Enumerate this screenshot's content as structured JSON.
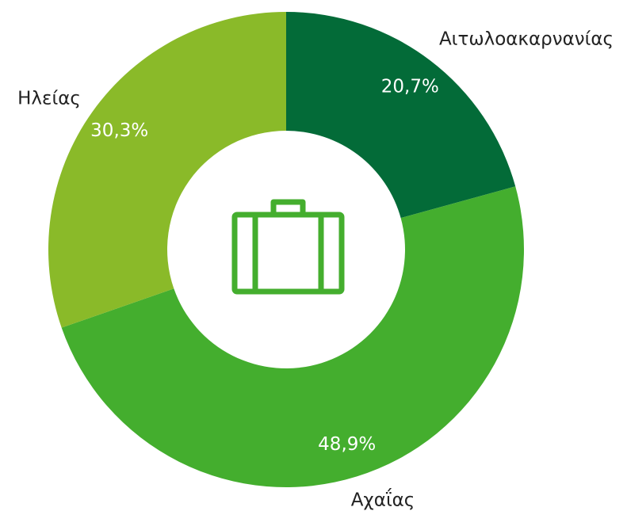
{
  "chart_data": {
    "type": "pie",
    "categories": [
      "Αιτωλοακαρνανίας",
      "Αχαΐας",
      "Ηλείας"
    ],
    "values": [
      20.7,
      48.9,
      30.3
    ],
    "value_labels": [
      "20,7%",
      "48,9%",
      "30,3%"
    ],
    "colors": [
      "#036b38",
      "#44ae2e",
      "#8aba29"
    ],
    "donut": true
  }
}
